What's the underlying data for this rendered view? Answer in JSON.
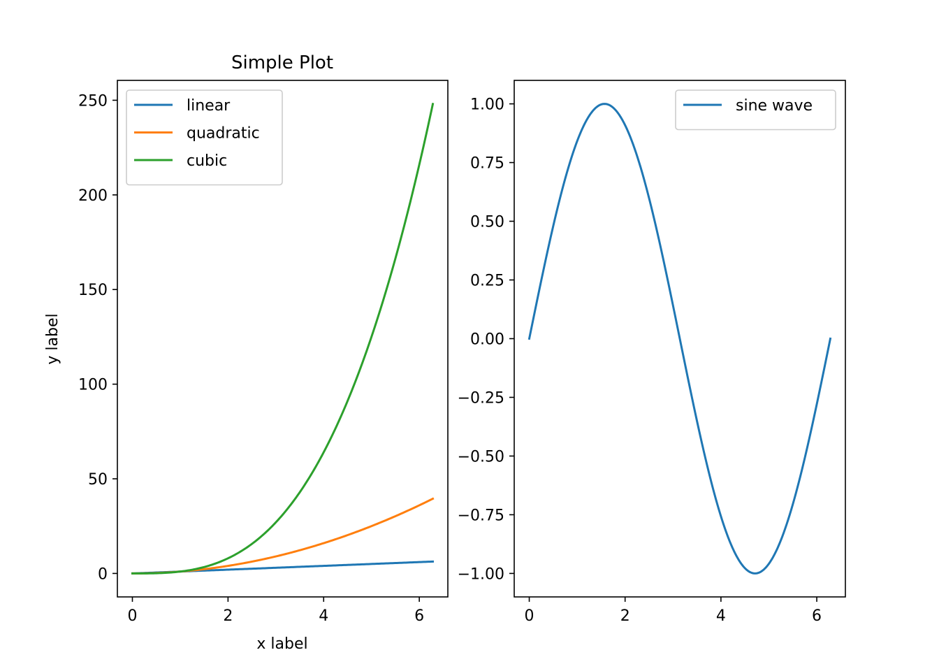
{
  "chart_data": [
    {
      "type": "line",
      "title": "Simple Plot",
      "xlabel": "x label",
      "ylabel": "y label",
      "xlim": [
        -0.314,
        6.597
      ],
      "ylim": [
        -12.4,
        260.5
      ],
      "xticks": [
        0,
        2,
        4,
        6
      ],
      "xtick_labels": [
        "0",
        "2",
        "4",
        "6"
      ],
      "yticks": [
        0,
        50,
        100,
        150,
        200,
        250
      ],
      "ytick_labels": [
        "0",
        "50",
        "100",
        "150",
        "200",
        "250"
      ],
      "grid": false,
      "legend_position": "upper-left",
      "series": [
        {
          "name": "linear",
          "color": "#1f77b4",
          "function": "x",
          "x_range": [
            0,
            6.283
          ]
        },
        {
          "name": "quadratic",
          "color": "#ff7f0e",
          "function": "x^2",
          "x_range": [
            0,
            6.283
          ]
        },
        {
          "name": "cubic",
          "color": "#2ca02c",
          "function": "x^3",
          "x_range": [
            0,
            6.283
          ]
        }
      ]
    },
    {
      "type": "line",
      "title": "",
      "xlabel": "",
      "ylabel": "",
      "xlim": [
        -0.314,
        6.597
      ],
      "ylim": [
        -1.1,
        1.1
      ],
      "xticks": [
        0,
        2,
        4,
        6
      ],
      "xtick_labels": [
        "0",
        "2",
        "4",
        "6"
      ],
      "yticks": [
        -1,
        -0.75,
        -0.5,
        -0.25,
        0,
        0.25,
        0.5,
        0.75,
        1
      ],
      "ytick_labels": [
        "−1.00",
        "−0.75",
        "−0.50",
        "−0.25",
        "0.00",
        "0.25",
        "0.50",
        "0.75",
        "1.00"
      ],
      "grid": false,
      "legend_position": "upper-right",
      "series": [
        {
          "name": "sine wave",
          "color": "#1f77b4",
          "function": "sin(x)",
          "x_range": [
            0,
            6.283
          ]
        }
      ]
    }
  ]
}
